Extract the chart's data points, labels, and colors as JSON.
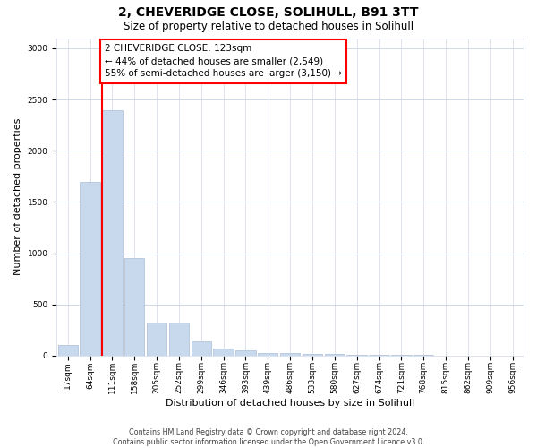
{
  "title": "2, CHEVERIDGE CLOSE, SOLIHULL, B91 3TT",
  "subtitle": "Size of property relative to detached houses in Solihull",
  "xlabel": "Distribution of detached houses by size in Solihull",
  "ylabel": "Number of detached properties",
  "footer_line1": "Contains HM Land Registry data © Crown copyright and database right 2024.",
  "footer_line2": "Contains public sector information licensed under the Open Government Licence v3.0.",
  "bin_labels": [
    "17sqm",
    "64sqm",
    "111sqm",
    "158sqm",
    "205sqm",
    "252sqm",
    "299sqm",
    "346sqm",
    "393sqm",
    "439sqm",
    "486sqm",
    "533sqm",
    "580sqm",
    "627sqm",
    "674sqm",
    "721sqm",
    "768sqm",
    "815sqm",
    "862sqm",
    "909sqm",
    "956sqm"
  ],
  "bar_values": [
    100,
    1700,
    2400,
    950,
    325,
    325,
    140,
    70,
    48,
    28,
    22,
    18,
    18,
    9,
    7,
    4,
    3,
    2,
    2,
    1,
    1
  ],
  "bar_color": "#c9d9ed",
  "bar_edge_color": "#aabdd6",
  "property_line_color": "red",
  "annotation_text": "2 CHEVERIDGE CLOSE: 123sqm\n← 44% of detached houses are smaller (2,549)\n55% of semi-detached houses are larger (3,150) →",
  "annotation_box_color": "white",
  "annotation_box_edge_color": "red",
  "ylim": [
    0,
    3100
  ],
  "yticks": [
    0,
    500,
    1000,
    1500,
    2000,
    2500,
    3000
  ],
  "background_color": "white",
  "grid_color": "#d0d8e8",
  "title_fontsize": 10,
  "subtitle_fontsize": 8.5,
  "ylabel_fontsize": 8,
  "xlabel_fontsize": 8,
  "tick_fontsize": 6.5,
  "annotation_fontsize": 7.5,
  "footer_fontsize": 5.8
}
